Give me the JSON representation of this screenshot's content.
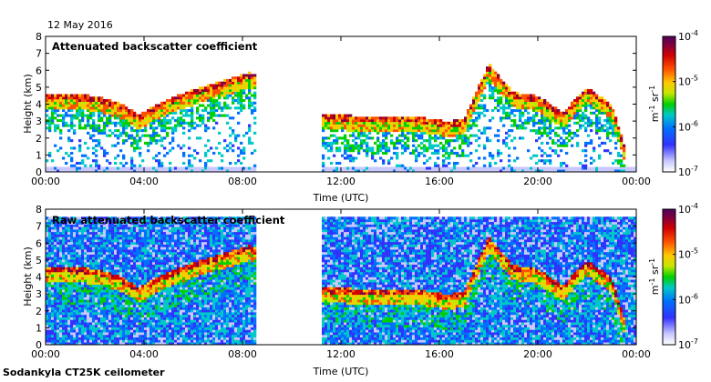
{
  "date": "12 May 2016",
  "footer": "Sodankyla CT25K ceilometer",
  "colors": {
    "background": "#ffffff",
    "no_data": "#d9d9e8",
    "colormap": [
      "#ffffff",
      "#c8c8ff",
      "#3232ff",
      "#0070ff",
      "#00c8c8",
      "#00d000",
      "#c8e600",
      "#ffc800",
      "#ff5000",
      "#d00000",
      "#800040",
      "#50005a"
    ]
  },
  "chart_data": [
    {
      "type": "heatmap",
      "title": "Attenuated backscatter coefficient",
      "xlabel": "Time (UTC)",
      "ylabel": "Height (km)",
      "xticks": [
        "00:00",
        "04:00",
        "08:00",
        "12:00",
        "16:00",
        "20:00",
        "00:00"
      ],
      "yticks": [
        "0",
        "1",
        "2",
        "3",
        "4",
        "5",
        "6",
        "7",
        "8"
      ],
      "xlim_hours": [
        0,
        24
      ],
      "ylim_km": [
        0,
        8
      ],
      "grid": false,
      "data_gap_hours": [
        8.6,
        11.2
      ],
      "colorbar": {
        "scale": "log",
        "min_label": "10-7",
        "max_label": "10-4",
        "ticks": [
          "10-4",
          "10-5",
          "10-6",
          "10-7"
        ],
        "unit": "m-1 sr-1"
      },
      "cloud_layer_top_km": [
        {
          "t": 0.0,
          "h": 4.6
        },
        {
          "t": 1.0,
          "h": 4.6
        },
        {
          "t": 2.0,
          "h": 4.5
        },
        {
          "t": 3.0,
          "h": 4.1
        },
        {
          "t": 3.8,
          "h": 3.4
        },
        {
          "t": 4.5,
          "h": 4.0
        },
        {
          "t": 5.5,
          "h": 4.6
        },
        {
          "t": 6.5,
          "h": 5.1
        },
        {
          "t": 7.5,
          "h": 5.5
        },
        {
          "t": 8.3,
          "h": 5.9
        },
        {
          "t": 11.2,
          "h": 3.4
        },
        {
          "t": 13.0,
          "h": 3.3
        },
        {
          "t": 15.0,
          "h": 3.3
        },
        {
          "t": 16.3,
          "h": 3.0
        },
        {
          "t": 17.0,
          "h": 3.1
        },
        {
          "t": 18.0,
          "h": 6.4
        },
        {
          "t": 19.0,
          "h": 4.7
        },
        {
          "t": 20.0,
          "h": 4.5
        },
        {
          "t": 21.0,
          "h": 3.5
        },
        {
          "t": 22.0,
          "h": 5.0
        },
        {
          "t": 23.0,
          "h": 4.0
        },
        {
          "t": 23.6,
          "h": 1.2
        }
      ]
    },
    {
      "type": "heatmap",
      "title": "Raw attenuated backscatter coefficient",
      "xlabel": "Time (UTC)",
      "ylabel": "Height (km)",
      "xticks": [
        "00:00",
        "04:00",
        "08:00",
        "12:00",
        "16:00",
        "20:00",
        "00:00"
      ],
      "yticks": [
        "0",
        "1",
        "2",
        "3",
        "4",
        "5",
        "6",
        "7",
        "8"
      ],
      "xlim_hours": [
        0,
        24
      ],
      "ylim_km": [
        0,
        8
      ],
      "grid": false,
      "data_gap_hours": [
        8.6,
        11.2
      ],
      "noise_top_km": 7.6,
      "colorbar": {
        "scale": "log",
        "min_label": "10-7",
        "max_label": "10-4",
        "ticks": [
          "10-4",
          "10-5",
          "10-6",
          "10-7"
        ],
        "unit": "m-1 sr-1"
      }
    }
  ]
}
